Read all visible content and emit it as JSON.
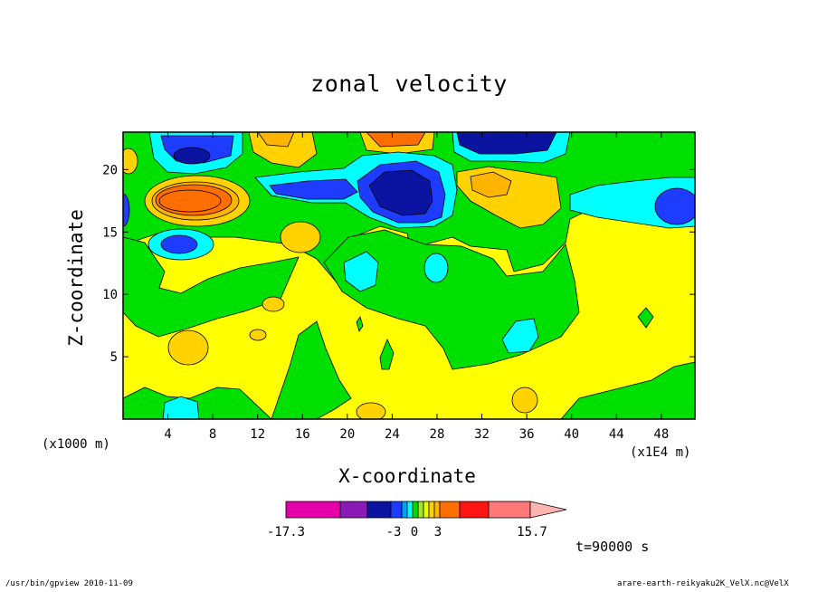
{
  "chart_data": {
    "type": "contour",
    "title": "zonal velocity",
    "xlabel": "X-coordinate",
    "ylabel": "Z-coordinate",
    "x_units": "(x1000 m)",
    "x_units_secondary": "(x1E4 m)",
    "x_ticks": [
      "4",
      "8",
      "12",
      "16",
      "20",
      "24",
      "28",
      "32",
      "36",
      "40",
      "44",
      "48"
    ],
    "y_ticks": [
      "5",
      "10",
      "15",
      "20"
    ],
    "xlim": [
      0,
      51
    ],
    "ylim": [
      0,
      23
    ],
    "colorbar": {
      "min_label": "-17.3",
      "max_label": "15.7",
      "tick_labels": [
        "-3",
        "0",
        "3"
      ],
      "colors": [
        "#e600aa",
        "#8a1ab4",
        "#0a14a0",
        "#1e3cff",
        "#00a0ff",
        "#00ffff",
        "#00dc00",
        "#a0e632",
        "#e6ff00",
        "#ffd200",
        "#ffb400",
        "#ff6e00",
        "#ff1414",
        "#ff7878",
        "#ffb4b4"
      ]
    },
    "time_label": "t=90000 s"
  },
  "footer": {
    "left": "/usr/bin/gpview  2010-11-09",
    "right": "arare-earth-reikyaku2K_VelX.nc@VelX"
  }
}
